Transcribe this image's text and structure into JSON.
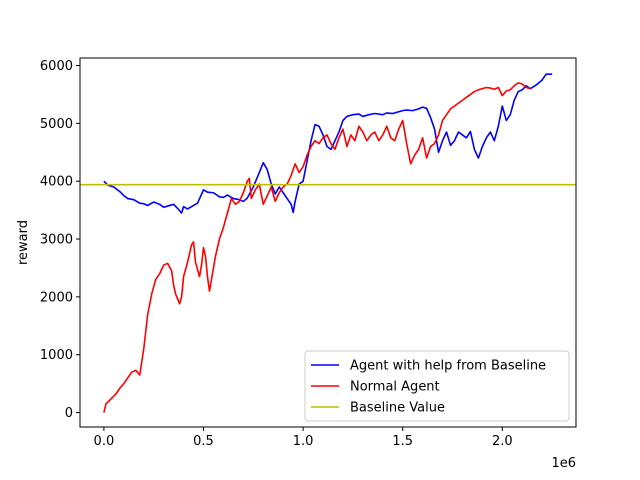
{
  "chart_data": {
    "type": "line",
    "title": "",
    "xlabel": "",
    "ylabel": "reward",
    "x_offset_text": "1e6",
    "xlim": [
      -0.12,
      2.37
    ],
    "ylim": [
      -250,
      6130
    ],
    "x_ticks": [
      0.0,
      0.5,
      1.0,
      1.5,
      2.0
    ],
    "x_tick_labels": [
      "0.0",
      "0.5",
      "1.0",
      "1.5",
      "2.0"
    ],
    "y_ticks": [
      0,
      1000,
      2000,
      3000,
      4000,
      5000,
      6000
    ],
    "y_tick_labels": [
      "0",
      "1000",
      "2000",
      "3000",
      "4000",
      "5000",
      "6000"
    ],
    "grid": false,
    "legend_position": "lower-right",
    "series": [
      {
        "name": "Agent with help from Baseline",
        "color": "#0000ff",
        "x": [
          0.0,
          0.02,
          0.05,
          0.08,
          0.1,
          0.12,
          0.15,
          0.18,
          0.2,
          0.22,
          0.25,
          0.28,
          0.3,
          0.32,
          0.35,
          0.37,
          0.39,
          0.4,
          0.42,
          0.45,
          0.47,
          0.5,
          0.52,
          0.55,
          0.58,
          0.6,
          0.62,
          0.65,
          0.68,
          0.7,
          0.72,
          0.75,
          0.78,
          0.8,
          0.82,
          0.84,
          0.86,
          0.88,
          0.9,
          0.92,
          0.94,
          0.95,
          0.96,
          0.97,
          0.98,
          1.0,
          1.02,
          1.04,
          1.06,
          1.08,
          1.1,
          1.12,
          1.14,
          1.16,
          1.18,
          1.2,
          1.22,
          1.25,
          1.28,
          1.3,
          1.33,
          1.36,
          1.4,
          1.42,
          1.45,
          1.48,
          1.5,
          1.52,
          1.55,
          1.58,
          1.6,
          1.62,
          1.64,
          1.66,
          1.68,
          1.7,
          1.72,
          1.74,
          1.76,
          1.78,
          1.8,
          1.82,
          1.84,
          1.86,
          1.88,
          1.9,
          1.92,
          1.94,
          1.96,
          1.98,
          2.0,
          2.02,
          2.04,
          2.06,
          2.08,
          2.1,
          2.12,
          2.14,
          2.16,
          2.18,
          2.2,
          2.22,
          2.25
        ],
        "y": [
          4000,
          3930,
          3900,
          3820,
          3750,
          3700,
          3680,
          3620,
          3610,
          3580,
          3640,
          3600,
          3550,
          3570,
          3600,
          3530,
          3450,
          3560,
          3520,
          3580,
          3620,
          3850,
          3810,
          3800,
          3730,
          3720,
          3760,
          3700,
          3680,
          3650,
          3710,
          3900,
          4150,
          4320,
          4200,
          3950,
          3780,
          3900,
          3800,
          3700,
          3600,
          3460,
          3650,
          3800,
          3950,
          4000,
          4350,
          4700,
          4980,
          4950,
          4800,
          4600,
          4550,
          4700,
          4850,
          5050,
          5120,
          5150,
          5160,
          5120,
          5150,
          5170,
          5150,
          5180,
          5170,
          5200,
          5220,
          5230,
          5220,
          5250,
          5280,
          5260,
          5100,
          4900,
          4500,
          4700,
          4850,
          4620,
          4700,
          4850,
          4800,
          4750,
          4860,
          4550,
          4400,
          4600,
          4750,
          4850,
          4700,
          4950,
          5300,
          5050,
          5150,
          5400,
          5550,
          5580,
          5650,
          5600,
          5640,
          5690,
          5750,
          5850,
          5850
        ]
      },
      {
        "name": "Normal Agent",
        "color": "#ff0000",
        "x": [
          0.0,
          0.01,
          0.02,
          0.04,
          0.06,
          0.08,
          0.1,
          0.12,
          0.14,
          0.16,
          0.18,
          0.2,
          0.21,
          0.22,
          0.24,
          0.26,
          0.28,
          0.3,
          0.32,
          0.34,
          0.35,
          0.36,
          0.38,
          0.39,
          0.4,
          0.42,
          0.44,
          0.45,
          0.46,
          0.48,
          0.49,
          0.5,
          0.51,
          0.52,
          0.53,
          0.54,
          0.56,
          0.58,
          0.6,
          0.62,
          0.64,
          0.66,
          0.68,
          0.7,
          0.72,
          0.73,
          0.74,
          0.76,
          0.78,
          0.8,
          0.82,
          0.84,
          0.86,
          0.88,
          0.9,
          0.92,
          0.94,
          0.96,
          0.98,
          1.0,
          1.02,
          1.04,
          1.06,
          1.08,
          1.1,
          1.12,
          1.14,
          1.16,
          1.18,
          1.2,
          1.22,
          1.24,
          1.26,
          1.28,
          1.3,
          1.32,
          1.34,
          1.36,
          1.38,
          1.4,
          1.42,
          1.44,
          1.46,
          1.48,
          1.5,
          1.52,
          1.54,
          1.56,
          1.58,
          1.6,
          1.62,
          1.64,
          1.66,
          1.68,
          1.7,
          1.72,
          1.74,
          1.76,
          1.78,
          1.8,
          1.82,
          1.84,
          1.86,
          1.88,
          1.9,
          1.92,
          1.94,
          1.96,
          1.98,
          2.0,
          2.02,
          2.04,
          2.06,
          2.08,
          2.1,
          2.12,
          2.14
        ],
        "y": [
          0,
          150,
          180,
          250,
          320,
          420,
          500,
          600,
          700,
          730,
          650,
          1100,
          1400,
          1700,
          2050,
          2300,
          2400,
          2550,
          2580,
          2450,
          2200,
          2050,
          1880,
          2000,
          2350,
          2600,
          2900,
          2950,
          2600,
          2350,
          2550,
          2850,
          2700,
          2350,
          2100,
          2300,
          2700,
          3000,
          3200,
          3450,
          3700,
          3600,
          3650,
          3800,
          4000,
          4050,
          3700,
          3850,
          3950,
          3600,
          3750,
          3900,
          3650,
          3800,
          3900,
          3950,
          4100,
          4300,
          4150,
          4250,
          4450,
          4600,
          4700,
          4650,
          4750,
          4800,
          4650,
          4550,
          4750,
          4900,
          4600,
          4800,
          4700,
          4950,
          4850,
          4700,
          4800,
          4850,
          4700,
          4800,
          4950,
          4750,
          4700,
          4900,
          5050,
          4650,
          4300,
          4450,
          4550,
          4750,
          4400,
          4600,
          4650,
          4800,
          5050,
          5150,
          5250,
          5300,
          5350,
          5400,
          5450,
          5500,
          5550,
          5580,
          5600,
          5620,
          5610,
          5590,
          5620,
          5480,
          5560,
          5580,
          5650,
          5700,
          5680,
          5620,
          5600
        ]
      },
      {
        "name": "Baseline Value",
        "color": "#bfbf00",
        "x": [
          -0.12,
          2.37
        ],
        "y": [
          3940,
          3940
        ]
      }
    ]
  }
}
